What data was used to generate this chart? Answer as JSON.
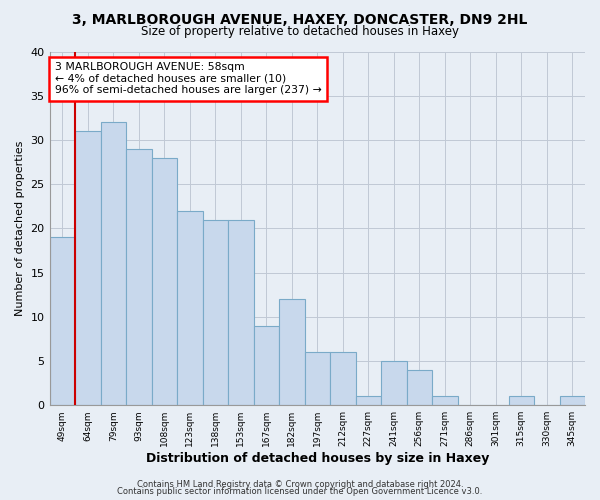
{
  "title": "3, MARLBOROUGH AVENUE, HAXEY, DONCASTER, DN9 2HL",
  "subtitle": "Size of property relative to detached houses in Haxey",
  "xlabel": "Distribution of detached houses by size in Haxey",
  "ylabel": "Number of detached properties",
  "footer_line1": "Contains HM Land Registry data © Crown copyright and database right 2024.",
  "footer_line2": "Contains public sector information licensed under the Open Government Licence v3.0.",
  "annotation_title": "3 MARLBOROUGH AVENUE: 58sqm",
  "annotation_line1": "← 4% of detached houses are smaller (10)",
  "annotation_line2": "96% of semi-detached houses are larger (237) →",
  "bar_labels": [
    "49sqm",
    "64sqm",
    "79sqm",
    "93sqm",
    "108sqm",
    "123sqm",
    "138sqm",
    "153sqm",
    "167sqm",
    "182sqm",
    "197sqm",
    "212sqm",
    "227sqm",
    "241sqm",
    "256sqm",
    "271sqm",
    "286sqm",
    "301sqm",
    "315sqm",
    "330sqm",
    "345sqm"
  ],
  "bar_values": [
    19,
    31,
    32,
    29,
    28,
    22,
    21,
    21,
    9,
    12,
    6,
    6,
    1,
    5,
    4,
    1,
    0,
    0,
    1,
    0,
    1
  ],
  "bar_color": "#c8d8ec",
  "bar_edge_color": "#7aaac8",
  "highlight_bar_index": 1,
  "highlight_color": "#cc0000",
  "ylim": [
    0,
    40
  ],
  "yticks": [
    0,
    5,
    10,
    15,
    20,
    25,
    30,
    35,
    40
  ],
  "bg_color": "#e8eef5",
  "plot_bg_color": "#e8eef5",
  "grid_color": "#c0c8d4"
}
